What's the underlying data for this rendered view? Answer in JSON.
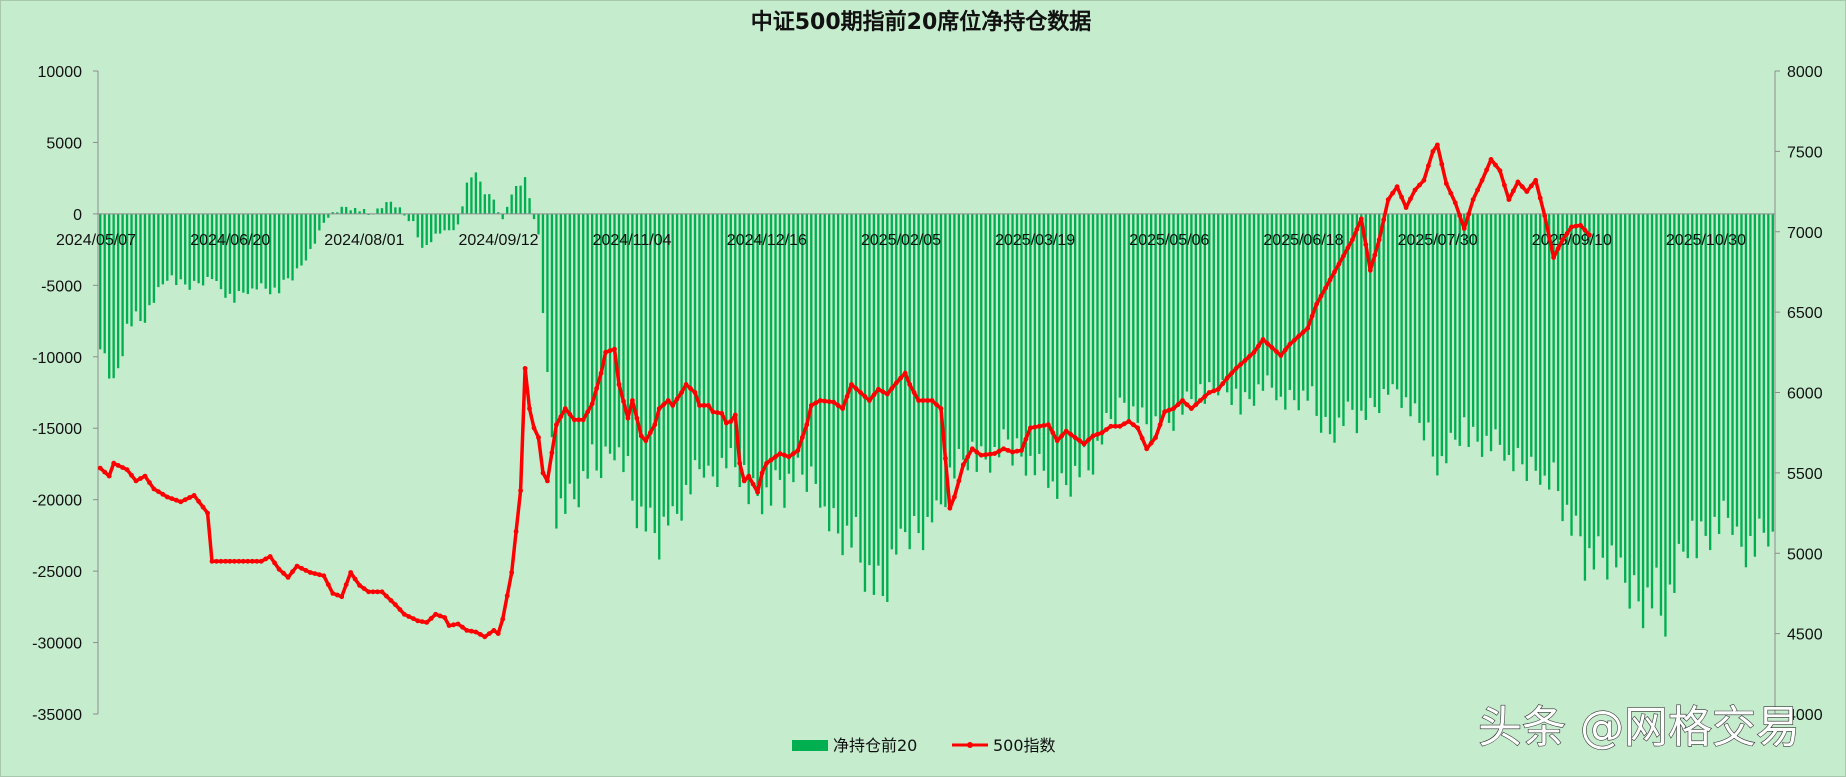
{
  "chart_data": {
    "type": "bar+line",
    "title": "中证500期指前20席位净持仓数据",
    "x_axis": {
      "tick_labels": [
        "2024/05/07",
        "2024/06/20",
        "2024/08/01",
        "2024/09/12",
        "2024/11/04",
        "2024/12/16",
        "2025/02/05",
        "2025/03/19",
        "2025/05/06",
        "2025/06/18",
        "2025/07/30",
        "2025/09/10",
        "2025/10/30"
      ],
      "tick_index": [
        0,
        30,
        60,
        90,
        120,
        150,
        180,
        210,
        240,
        270,
        300,
        330,
        360
      ]
    },
    "y_left": {
      "min": -35000,
      "max": 10000,
      "step": 5000,
      "ticks": [
        "10000",
        "5000",
        "0",
        "-5000",
        "-10000",
        "-15000",
        "-20000",
        "-25000",
        "-30000",
        "-35000"
      ]
    },
    "y_right": {
      "min": 4000,
      "max": 8000,
      "step": 500,
      "ticks": [
        "8000",
        "7500",
        "7000",
        "6500",
        "6000",
        "5500",
        "5000",
        "4500",
        "4000"
      ]
    },
    "bar_series": {
      "name": "净持仓前20",
      "color": "#00b050",
      "anchors": [
        [
          0,
          -8500
        ],
        [
          3,
          -12000
        ],
        [
          6,
          -8000
        ],
        [
          10,
          -7000
        ],
        [
          15,
          -4500
        ],
        [
          20,
          -5000
        ],
        [
          25,
          -4500
        ],
        [
          30,
          -6000
        ],
        [
          35,
          -5000
        ],
        [
          40,
          -5500
        ],
        [
          45,
          -3500
        ],
        [
          48,
          -2000
        ],
        [
          51,
          0
        ],
        [
          55,
          500
        ],
        [
          60,
          0
        ],
        [
          65,
          800
        ],
        [
          70,
          -500
        ],
        [
          72,
          -2500
        ],
        [
          75,
          -1500
        ],
        [
          80,
          -800
        ],
        [
          82,
          2000
        ],
        [
          84,
          3000
        ],
        [
          86,
          1500
        ],
        [
          88,
          1000
        ],
        [
          90,
          -500
        ],
        [
          92,
          1500
        ],
        [
          95,
          2500
        ],
        [
          98,
          -1500
        ],
        [
          100,
          -12000
        ],
        [
          102,
          -20000
        ],
        [
          106,
          -20000
        ],
        [
          110,
          -18000
        ],
        [
          115,
          -16000
        ],
        [
          120,
          -20000
        ],
        [
          125,
          -23000
        ],
        [
          130,
          -20000
        ],
        [
          135,
          -18000
        ],
        [
          140,
          -17000
        ],
        [
          145,
          -19000
        ],
        [
          150,
          -20000
        ],
        [
          155,
          -18000
        ],
        [
          160,
          -19000
        ],
        [
          165,
          -22000
        ],
        [
          170,
          -23500
        ],
        [
          175,
          -27000
        ],
        [
          180,
          -22000
        ],
        [
          185,
          -22000
        ],
        [
          190,
          -18000
        ],
        [
          195,
          -17000
        ],
        [
          200,
          -17000
        ],
        [
          205,
          -16000
        ],
        [
          210,
          -18000
        ],
        [
          215,
          -19000
        ],
        [
          220,
          -18000
        ],
        [
          225,
          -15000
        ],
        [
          230,
          -13000
        ],
        [
          235,
          -15000
        ],
        [
          240,
          -14000
        ],
        [
          245,
          -13000
        ],
        [
          250,
          -12000
        ],
        [
          255,
          -13000
        ],
        [
          260,
          -12000
        ],
        [
          265,
          -13000
        ],
        [
          270,
          -13000
        ],
        [
          275,
          -15000
        ],
        [
          280,
          -14000
        ],
        [
          285,
          -13500
        ],
        [
          290,
          -12000
        ],
        [
          295,
          -15000
        ],
        [
          300,
          -17000
        ],
        [
          305,
          -15000
        ],
        [
          310,
          -16000
        ],
        [
          315,
          -17000
        ],
        [
          320,
          -18000
        ],
        [
          325,
          -18000
        ],
        [
          330,
          -23000
        ],
        [
          335,
          -24000
        ],
        [
          340,
          -25000
        ],
        [
          345,
          -27000
        ],
        [
          350,
          -27000
        ],
        [
          355,
          -23000
        ],
        [
          360,
          -22000
        ],
        [
          365,
          -22000
        ],
        [
          370,
          -23000
        ],
        [
          374,
          -22000
        ]
      ]
    },
    "line_series": {
      "name": "500指数",
      "color": "#ff0000",
      "anchors": [
        [
          0,
          5530
        ],
        [
          2,
          5480
        ],
        [
          3,
          5560
        ],
        [
          6,
          5520
        ],
        [
          8,
          5450
        ],
        [
          10,
          5480
        ],
        [
          12,
          5400
        ],
        [
          15,
          5350
        ],
        [
          18,
          5320
        ],
        [
          21,
          5360
        ],
        [
          24,
          5250
        ],
        [
          25,
          4950
        ],
        [
          30,
          4950
        ],
        [
          36,
          4950
        ],
        [
          38,
          4980
        ],
        [
          40,
          4900
        ],
        [
          42,
          4850
        ],
        [
          44,
          4920
        ],
        [
          47,
          4880
        ],
        [
          50,
          4860
        ],
        [
          52,
          4750
        ],
        [
          54,
          4730
        ],
        [
          56,
          4880
        ],
        [
          58,
          4800
        ],
        [
          60,
          4760
        ],
        [
          63,
          4760
        ],
        [
          66,
          4680
        ],
        [
          68,
          4620
        ],
        [
          71,
          4580
        ],
        [
          73,
          4570
        ],
        [
          75,
          4620
        ],
        [
          77,
          4600
        ],
        [
          78,
          4550
        ],
        [
          80,
          4560
        ],
        [
          82,
          4520
        ],
        [
          84,
          4510
        ],
        [
          86,
          4480
        ],
        [
          88,
          4520
        ],
        [
          89,
          4500
        ],
        [
          90,
          4590
        ],
        [
          92,
          4880
        ],
        [
          94,
          5390
        ],
        [
          95,
          6150
        ],
        [
          96,
          5900
        ],
        [
          97,
          5780
        ],
        [
          98,
          5720
        ],
        [
          99,
          5500
        ],
        [
          100,
          5450
        ],
        [
          102,
          5800
        ],
        [
          104,
          5900
        ],
        [
          106,
          5830
        ],
        [
          108,
          5830
        ],
        [
          110,
          5930
        ],
        [
          112,
          6120
        ],
        [
          113,
          6250
        ],
        [
          115,
          6270
        ],
        [
          116,
          6050
        ],
        [
          118,
          5840
        ],
        [
          119,
          5950
        ],
        [
          121,
          5730
        ],
        [
          122,
          5700
        ],
        [
          124,
          5800
        ],
        [
          125,
          5900
        ],
        [
          127,
          5950
        ],
        [
          128,
          5920
        ],
        [
          130,
          6000
        ],
        [
          131,
          6050
        ],
        [
          133,
          6000
        ],
        [
          134,
          5920
        ],
        [
          136,
          5920
        ],
        [
          137,
          5880
        ],
        [
          139,
          5870
        ],
        [
          140,
          5810
        ],
        [
          141,
          5820
        ],
        [
          142,
          5860
        ],
        [
          143,
          5560
        ],
        [
          144,
          5450
        ],
        [
          145,
          5480
        ],
        [
          147,
          5380
        ],
        [
          148,
          5500
        ],
        [
          149,
          5560
        ],
        [
          150,
          5580
        ],
        [
          152,
          5620
        ],
        [
          154,
          5600
        ],
        [
          156,
          5640
        ],
        [
          158,
          5800
        ],
        [
          159,
          5920
        ],
        [
          161,
          5950
        ],
        [
          164,
          5940
        ],
        [
          166,
          5900
        ],
        [
          168,
          6050
        ],
        [
          170,
          6000
        ],
        [
          172,
          5950
        ],
        [
          174,
          6020
        ],
        [
          176,
          5990
        ],
        [
          178,
          6060
        ],
        [
          180,
          6120
        ],
        [
          181,
          6050
        ],
        [
          183,
          5950
        ],
        [
          186,
          5950
        ],
        [
          188,
          5900
        ],
        [
          190,
          5280
        ],
        [
          191,
          5350
        ],
        [
          193,
          5550
        ],
        [
          195,
          5650
        ],
        [
          197,
          5610
        ],
        [
          200,
          5620
        ],
        [
          202,
          5650
        ],
        [
          204,
          5630
        ],
        [
          206,
          5640
        ],
        [
          208,
          5780
        ],
        [
          210,
          5790
        ],
        [
          212,
          5800
        ],
        [
          214,
          5700
        ],
        [
          216,
          5760
        ],
        [
          218,
          5720
        ],
        [
          220,
          5680
        ],
        [
          222,
          5730
        ],
        [
          224,
          5750
        ],
        [
          226,
          5790
        ],
        [
          228,
          5790
        ],
        [
          230,
          5820
        ],
        [
          232,
          5780
        ],
        [
          234,
          5650
        ],
        [
          236,
          5720
        ],
        [
          238,
          5880
        ],
        [
          240,
          5900
        ],
        [
          242,
          5950
        ],
        [
          244,
          5900
        ],
        [
          246,
          5950
        ],
        [
          248,
          6000
        ],
        [
          250,
          6020
        ],
        [
          252,
          6090
        ],
        [
          254,
          6150
        ],
        [
          256,
          6200
        ],
        [
          258,
          6250
        ],
        [
          260,
          6330
        ],
        [
          262,
          6280
        ],
        [
          264,
          6230
        ],
        [
          266,
          6300
        ],
        [
          268,
          6350
        ],
        [
          270,
          6400
        ],
        [
          272,
          6550
        ],
        [
          274,
          6650
        ],
        [
          276,
          6750
        ],
        [
          278,
          6850
        ],
        [
          280,
          6950
        ],
        [
          282,
          7080
        ],
        [
          284,
          6760
        ],
        [
          286,
          6950
        ],
        [
          288,
          7200
        ],
        [
          290,
          7280
        ],
        [
          292,
          7150
        ],
        [
          294,
          7260
        ],
        [
          296,
          7320
        ],
        [
          298,
          7500
        ],
        [
          299,
          7540
        ],
        [
          301,
          7300
        ],
        [
          303,
          7180
        ],
        [
          305,
          7020
        ],
        [
          307,
          7200
        ],
        [
          309,
          7320
        ],
        [
          311,
          7450
        ],
        [
          313,
          7380
        ],
        [
          315,
          7200
        ],
        [
          317,
          7310
        ],
        [
          319,
          7250
        ],
        [
          321,
          7320
        ],
        [
          323,
          7100
        ],
        [
          325,
          6840
        ],
        [
          327,
          6950
        ],
        [
          329,
          7030
        ],
        [
          331,
          7040
        ],
        [
          333,
          6980
        ]
      ]
    },
    "legend": {
      "items": [
        "净持仓前20",
        "500指数"
      ],
      "placement": "bottom"
    },
    "watermark": "头条 @网格交易"
  }
}
